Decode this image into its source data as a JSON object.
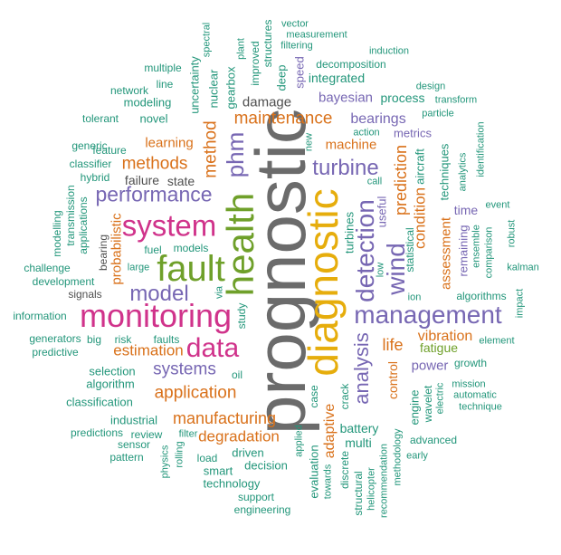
{
  "colors": {
    "gray": "#6b6b6b",
    "gold": "#e6ad0c",
    "green": "#6fa02a",
    "magenta": "#d0338b",
    "purple": "#7767b3",
    "orange": "#d9711a",
    "teal": "#22967a",
    "dark": "#4f4f4f"
  },
  "words": {
    "prognostic": "prognostic",
    "diagnostic": "diagnostic",
    "health": "health",
    "fault": "fault",
    "monitoring": "monitoring",
    "system": "system",
    "management": "management",
    "data": "data",
    "wind": "wind",
    "detection": "detection",
    "model": "model",
    "performance": "performance",
    "turbine": "turbine",
    "maintenance": "maintenance",
    "phm": "phm",
    "analysis": "analysis",
    "methods": "methods",
    "method": "method",
    "systems": "systems",
    "application": "application",
    "manufacturing": "manufacturing",
    "degradation": "degradation",
    "estimation": "estimation",
    "prediction": "prediction",
    "condition": "condition",
    "assessment": "assessment",
    "life": "life",
    "vibration": "vibration",
    "fatigue": "fatigue",
    "power": "power",
    "bearings": "bearings",
    "machine": "machine",
    "bayesian": "bayesian",
    "learning": "learning",
    "failure": "failure",
    "state": "state",
    "adaptive": "adaptive",
    "probabilistic": "probabilistic",
    "control": "control",
    "damage": "damage",
    "integrated": "integrated",
    "process": "process",
    "uncertainty": "uncertainty",
    "nuclear": "nuclear",
    "gearbox": "gearbox",
    "modeling": "modeling",
    "novel": "novel",
    "feature": "feature",
    "generic": "generic",
    "classifier": "classifier",
    "hybrid": "hybrid",
    "tolerant": "tolerant",
    "network": "network",
    "line": "line",
    "multiple": "multiple",
    "spectral": "spectral",
    "plant": "plant",
    "improved": "improved",
    "structures": "structures",
    "deep": "deep",
    "speed": "speed",
    "vector": "vector",
    "measurement": "measurement",
    "filtering": "filtering",
    "decomposition": "decomposition",
    "induction": "induction",
    "design": "design",
    "transform": "transform",
    "particle": "particle",
    "metrics": "metrics",
    "action": "action",
    "new": "new",
    "call": "call",
    "aircraft": "aircraft",
    "techniques": "techniques",
    "analytics": "analytics",
    "identification": "identification",
    "event": "event",
    "time": "time",
    "remaining": "remaining",
    "ensemble": "ensemble",
    "comparison": "comparison",
    "robust": "robust",
    "kalman": "kalman",
    "algorithms": "algorithms",
    "impact": "impact",
    "element": "element",
    "useful": "useful",
    "statistical": "statistical",
    "ion": "ion",
    "low": "low",
    "turbines": "turbines",
    "transmission": "transmission",
    "modelling": "modelling",
    "applications": "applications",
    "challenge": "challenge",
    "development": "development",
    "signals": "signals",
    "bearing": "bearing",
    "fuel": "fuel",
    "models": "models",
    "large": "large",
    "via": "via",
    "study": "study",
    "information": "information",
    "generators": "generators",
    "predictive": "predictive",
    "big": "big",
    "risk": "risk",
    "faults": "faults",
    "oil": "oil",
    "selection": "selection",
    "algorithm": "algorithm",
    "classification": "classification",
    "industrial": "industrial",
    "predictions": "predictions",
    "review": "review",
    "sensor": "sensor",
    "pattern": "pattern",
    "filter": "filter",
    "physics": "physics",
    "rolling": "rolling",
    "load": "load",
    "smart": "smart",
    "driven": "driven",
    "technology": "technology",
    "decision": "decision",
    "support": "support",
    "engineering": "engineering",
    "applied": "applied",
    "evaluation": "evaluation",
    "towards": "towards",
    "case": "case",
    "crack": "crack",
    "discrete": "discrete",
    "structural": "structural",
    "battery": "battery",
    "multi": "multi",
    "helicopter": "helicopter",
    "recommendation": "recommendation",
    "methodology": "methodology",
    "engine": "engine",
    "wavelet": "wavelet",
    "electric": "electric",
    "advanced": "advanced",
    "early": "early",
    "mission": "mission",
    "automatic": "automatic",
    "technique": "technique",
    "growth": "growth"
  }
}
